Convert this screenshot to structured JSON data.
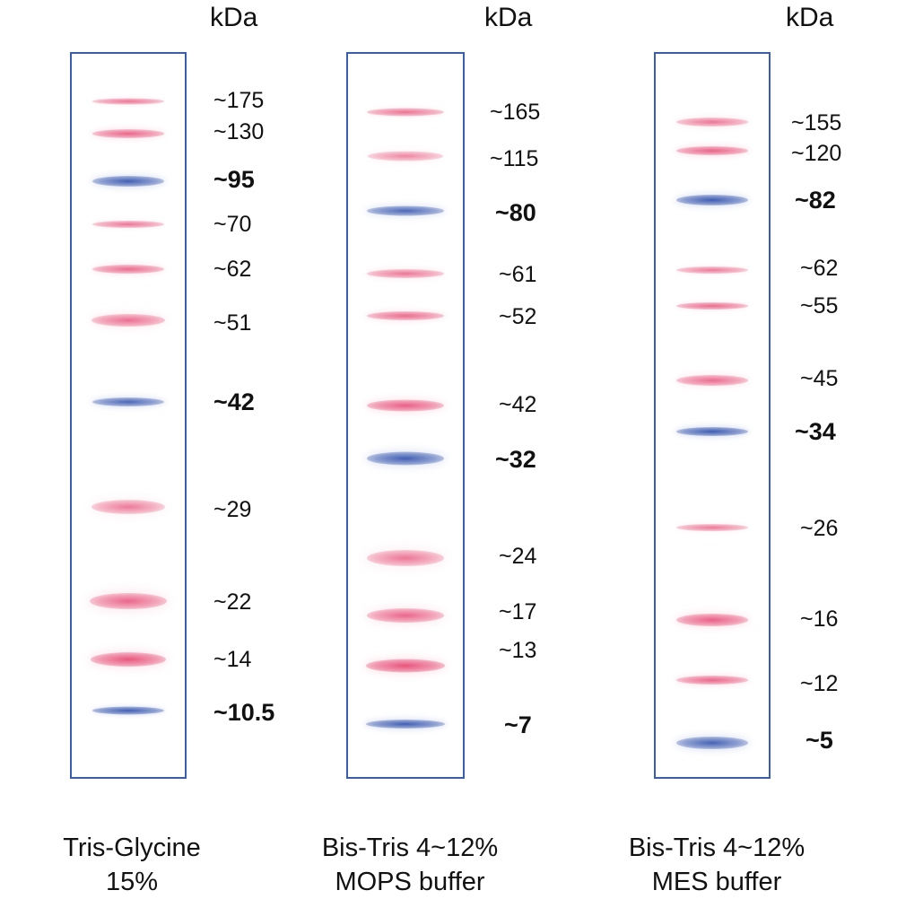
{
  "unit_label": "kDa",
  "colors": {
    "pink_band": "#ec6f8c",
    "blue_band": "#4e6fb8",
    "lane_border": "#3a5ea9"
  },
  "panels": [
    {
      "id": "tris-glycine",
      "unit": "kDa",
      "caption_line1": "Tris-Glycine",
      "caption_line2": "15%",
      "markers": [
        {
          "label": "~175",
          "color": "pink",
          "intensity": 0.55,
          "bold": false
        },
        {
          "label": "~130",
          "color": "pink",
          "intensity": 0.75,
          "bold": false
        },
        {
          "label": "~95",
          "color": "blue",
          "intensity": 0.95,
          "bold": true
        },
        {
          "label": "~70",
          "color": "pink",
          "intensity": 0.55,
          "bold": false
        },
        {
          "label": "~62",
          "color": "pink",
          "intensity": 0.7,
          "bold": false
        },
        {
          "label": "~51",
          "color": "pink",
          "intensity": 0.65,
          "bold": false
        },
        {
          "label": "~42",
          "color": "blue",
          "intensity": 0.85,
          "bold": true
        },
        {
          "label": "~29",
          "color": "pink",
          "intensity": 0.5,
          "bold": false
        },
        {
          "label": "~22",
          "color": "pink",
          "intensity": 0.75,
          "bold": false
        },
        {
          "label": "~14",
          "color": "pink",
          "intensity": 0.95,
          "bold": false
        },
        {
          "label": "~10.5",
          "color": "blue",
          "intensity": 0.95,
          "bold": true
        }
      ]
    },
    {
      "id": "bis-tris-mops",
      "unit": "kDa",
      "caption_line1": "Bis-Tris 4~12%",
      "caption_line2": "MOPS buffer",
      "markers": [
        {
          "label": "~165",
          "color": "pink",
          "intensity": 0.6,
          "bold": false
        },
        {
          "label": "~115",
          "color": "pink",
          "intensity": 0.35,
          "bold": false
        },
        {
          "label": "~80",
          "color": "blue",
          "intensity": 0.85,
          "bold": true
        },
        {
          "label": "~61",
          "color": "pink",
          "intensity": 0.55,
          "bold": false
        },
        {
          "label": "~52",
          "color": "pink",
          "intensity": 0.7,
          "bold": false
        },
        {
          "label": "~42",
          "color": "pink",
          "intensity": 0.85,
          "bold": false
        },
        {
          "label": "~32",
          "color": "blue",
          "intensity": 0.95,
          "bold": true
        },
        {
          "label": "~24",
          "color": "pink",
          "intensity": 0.55,
          "bold": false
        },
        {
          "label": "~17",
          "color": "pink",
          "intensity": 0.75,
          "bold": false
        },
        {
          "label": "~13",
          "color": "pink",
          "intensity": 1.0,
          "bold": false
        },
        {
          "label": "~7",
          "color": "blue",
          "intensity": 0.95,
          "bold": true
        }
      ]
    },
    {
      "id": "bis-tris-mes",
      "unit": "kDa",
      "caption_line1": "Bis-Tris 4~12%",
      "caption_line2": "MES buffer",
      "markers": [
        {
          "label": "~155",
          "color": "pink",
          "intensity": 0.55,
          "bold": false
        },
        {
          "label": "~120",
          "color": "pink",
          "intensity": 0.8,
          "bold": false
        },
        {
          "label": "~82",
          "color": "blue",
          "intensity": 1.0,
          "bold": true
        },
        {
          "label": "~62",
          "color": "pink",
          "intensity": 0.5,
          "bold": false
        },
        {
          "label": "~55",
          "color": "pink",
          "intensity": 0.7,
          "bold": false
        },
        {
          "label": "~45",
          "color": "pink",
          "intensity": 0.7,
          "bold": false
        },
        {
          "label": "~34",
          "color": "blue",
          "intensity": 1.0,
          "bold": true
        },
        {
          "label": "~26",
          "color": "pink",
          "intensity": 0.5,
          "bold": false
        },
        {
          "label": "~16",
          "color": "pink",
          "intensity": 0.85,
          "bold": false
        },
        {
          "label": "~12",
          "color": "pink",
          "intensity": 0.75,
          "bold": false
        },
        {
          "label": "~5",
          "color": "blue",
          "intensity": 0.9,
          "bold": true
        }
      ]
    }
  ]
}
